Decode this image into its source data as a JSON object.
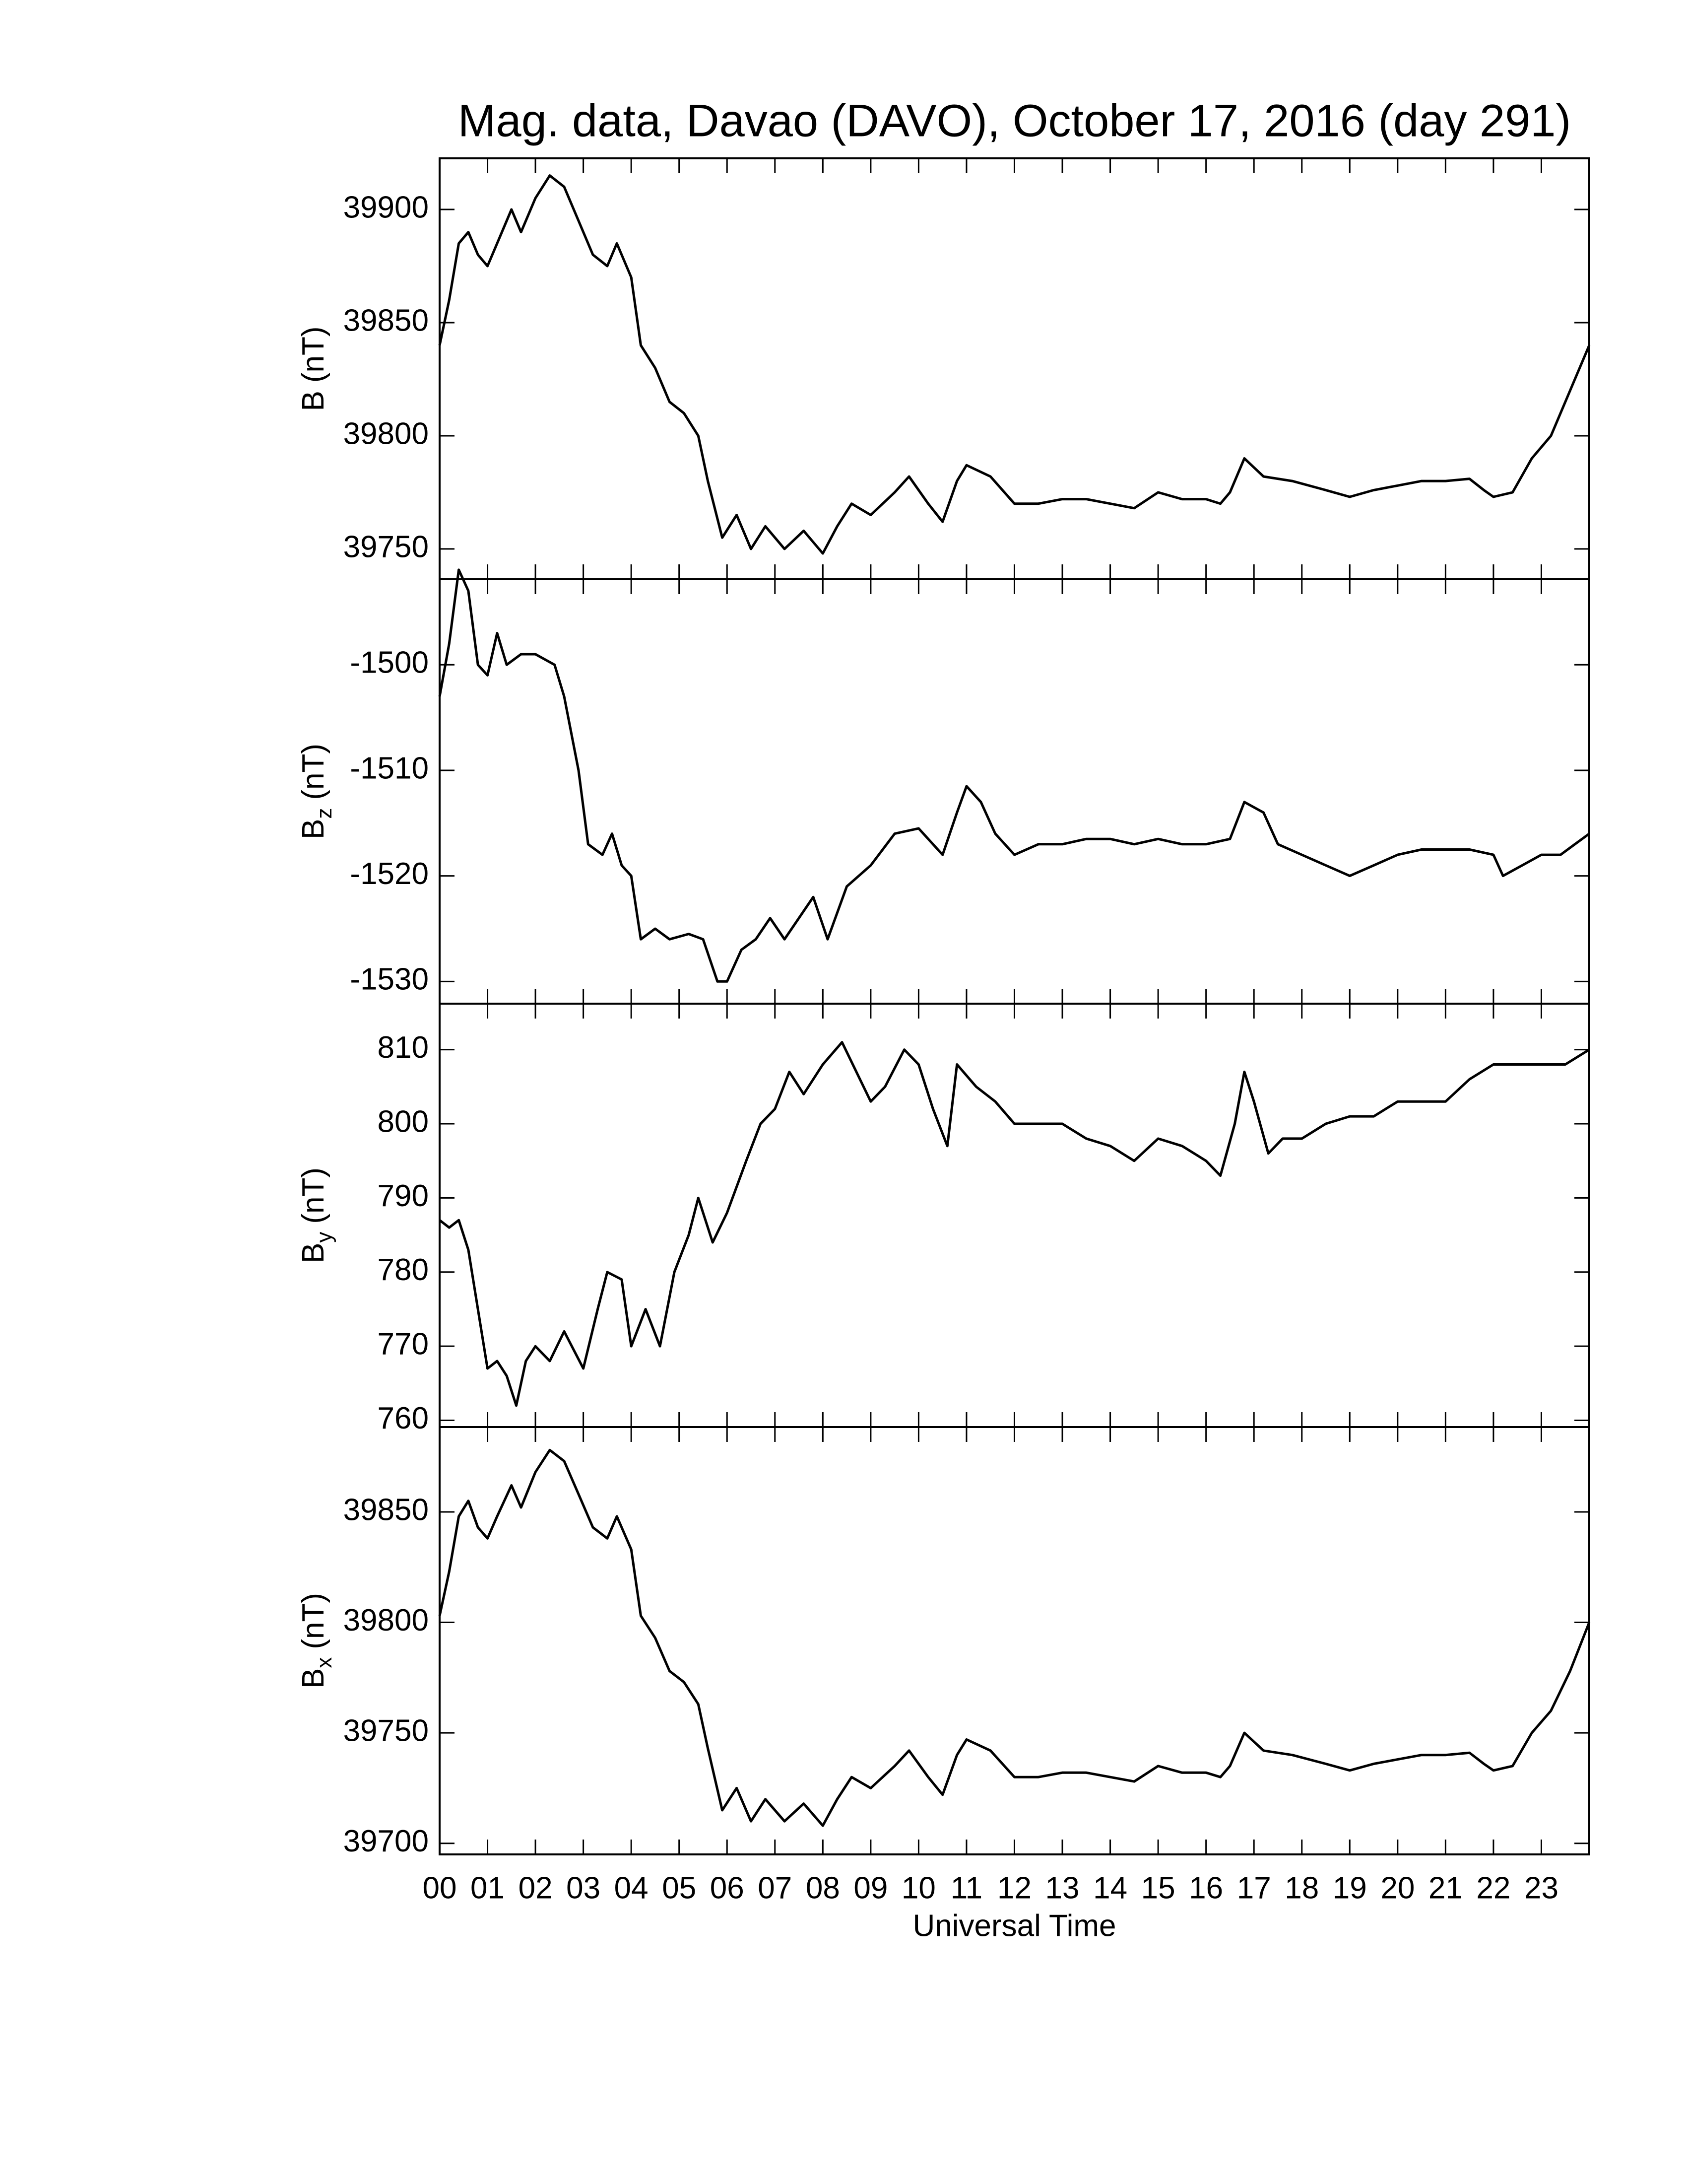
{
  "chart_data": [
    {
      "type": "line",
      "title": "Mag. data, Davao (DAVO), October 17, 2016 (day 291)",
      "ylabel": "B",
      "ylabel_unit": "(nT)",
      "ylim": [
        39736.6,
        39922.6
      ],
      "yticks": [
        39750,
        39800,
        39850,
        39900
      ],
      "xlim": [
        0,
        24
      ],
      "series": [
        {
          "color": "#000000",
          "x": [
            0,
            0.2,
            0.4,
            0.6,
            0.8,
            1.0,
            1.2,
            1.5,
            1.7,
            2.0,
            2.3,
            2.6,
            2.9,
            3.2,
            3.5,
            3.7,
            4.0,
            4.2,
            4.5,
            4.8,
            5.1,
            5.4,
            5.6,
            5.9,
            6.2,
            6.5,
            6.8,
            7.2,
            7.6,
            8.0,
            8.3,
            8.6,
            9.0,
            9.5,
            9.8,
            10.2,
            10.5,
            10.8,
            11.0,
            11.5,
            12.0,
            12.5,
            13.0,
            13.5,
            14.0,
            14.5,
            15.0,
            15.5,
            16.0,
            16.3,
            16.5,
            16.8,
            17.2,
            17.8,
            18.5,
            19.0,
            19.5,
            20.0,
            20.5,
            21.0,
            21.5,
            21.8,
            22.0,
            22.4,
            22.8,
            23.2,
            23.6,
            24.0
          ],
          "values": [
            39840,
            39860,
            39885,
            39890,
            39880,
            39875,
            39885,
            39900,
            39890,
            39905,
            39915,
            39910,
            39895,
            39880,
            39875,
            39885,
            39870,
            39840,
            39830,
            39815,
            39810,
            39800,
            39780,
            39755,
            39765,
            39750,
            39760,
            39750,
            39758,
            39748,
            39760,
            39770,
            39765,
            39775,
            39782,
            39770,
            39762,
            39780,
            39787,
            39782,
            39770,
            39770,
            39772,
            39772,
            39770,
            39768,
            39775,
            39772,
            39772,
            39770,
            39775,
            39790,
            39782,
            39780,
            39776,
            39773,
            39776,
            39778,
            39780,
            39780,
            39781,
            39776,
            39773,
            39775,
            39790,
            39800,
            39820,
            39840
          ]
        }
      ]
    },
    {
      "type": "line",
      "ylabel": "B",
      "ylabel_sub": "z",
      "ylabel_unit": "(nT)",
      "ylim": [
        -1532.1,
        -1491.9
      ],
      "yticks": [
        -1530,
        -1520,
        -1510,
        -1500
      ],
      "xlim": [
        0,
        24
      ],
      "series": [
        {
          "color": "#000000",
          "x": [
            0,
            0.2,
            0.4,
            0.6,
            0.8,
            1.0,
            1.2,
            1.4,
            1.7,
            2.0,
            2.4,
            2.6,
            2.9,
            3.1,
            3.4,
            3.6,
            3.8,
            4.0,
            4.2,
            4.5,
            4.8,
            5.2,
            5.5,
            5.8,
            6.0,
            6.3,
            6.6,
            6.9,
            7.2,
            7.5,
            7.8,
            8.1,
            8.5,
            9.0,
            9.5,
            10.0,
            10.5,
            10.8,
            11.0,
            11.3,
            11.6,
            12.0,
            12.5,
            13.0,
            13.5,
            14.0,
            14.5,
            15.0,
            15.5,
            16.0,
            16.5,
            16.8,
            17.2,
            17.5,
            18.0,
            18.5,
            19.0,
            19.5,
            20.0,
            20.5,
            21.0,
            21.5,
            22.0,
            22.2,
            22.6,
            23.0,
            23.4,
            23.7,
            24.0
          ],
          "values": [
            -1503,
            -1498,
            -1491,
            -1493,
            -1500,
            -1501,
            -1497,
            -1500,
            -1499,
            -1499,
            -1500,
            -1503,
            -1510,
            -1517,
            -1518,
            -1516,
            -1519,
            -1520,
            -1526,
            -1525,
            -1526,
            -1525.5,
            -1526,
            -1530,
            -1530,
            -1527,
            -1526,
            -1524,
            -1526,
            -1524,
            -1522,
            -1526,
            -1521,
            -1519,
            -1516,
            -1515.5,
            -1518,
            -1514,
            -1511.5,
            -1513,
            -1516,
            -1518,
            -1517,
            -1517,
            -1516.5,
            -1516.5,
            -1517,
            -1516.5,
            -1517,
            -1517,
            -1516.5,
            -1513,
            -1514,
            -1517,
            -1518,
            -1519,
            -1520,
            -1519,
            -1518,
            -1517.5,
            -1517.5,
            -1517.5,
            -1518,
            -1520,
            -1519,
            -1518,
            -1518,
            -1517,
            -1516
          ]
        }
      ]
    },
    {
      "type": "line",
      "ylabel": "B",
      "ylabel_sub": "y",
      "ylabel_unit": "(nT)",
      "ylim": [
        759.1,
        816.2
      ],
      "yticks": [
        760,
        770,
        780,
        790,
        800,
        810
      ],
      "xlim": [
        0,
        24
      ],
      "series": [
        {
          "color": "#000000",
          "x": [
            0,
            0.2,
            0.4,
            0.6,
            0.8,
            1.0,
            1.2,
            1.4,
            1.6,
            1.8,
            2.0,
            2.3,
            2.6,
            3.0,
            3.3,
            3.5,
            3.8,
            4.0,
            4.3,
            4.6,
            4.9,
            5.2,
            5.4,
            5.7,
            6.0,
            6.4,
            6.7,
            7.0,
            7.3,
            7.6,
            8.0,
            8.4,
            8.7,
            9.0,
            9.3,
            9.7,
            10.0,
            10.3,
            10.6,
            10.8,
            11.2,
            11.6,
            12.0,
            12.5,
            13.0,
            13.5,
            14.0,
            14.5,
            15.0,
            15.5,
            16.0,
            16.3,
            16.6,
            16.8,
            17.0,
            17.3,
            17.6,
            18.0,
            18.5,
            19.0,
            19.5,
            20.0,
            20.5,
            21.0,
            21.5,
            22.0,
            22.5,
            23.0,
            23.5,
            24.0
          ],
          "values": [
            787,
            786,
            787,
            783,
            775,
            767,
            768,
            766,
            762,
            768,
            770,
            768,
            772,
            767,
            775,
            780,
            779,
            770,
            775,
            770,
            780,
            785,
            790,
            784,
            788,
            795,
            800,
            802,
            807,
            804,
            808,
            811,
            807,
            803,
            805,
            810,
            808,
            802,
            797,
            808,
            805,
            803,
            800,
            800,
            800,
            798,
            797,
            795,
            798,
            797,
            795,
            793,
            800,
            807,
            803,
            796,
            798,
            798,
            800,
            801,
            801,
            803,
            803,
            803,
            806,
            808,
            808,
            808,
            808,
            810
          ]
        }
      ]
    },
    {
      "type": "line",
      "ylabel": "B",
      "ylabel_sub": "x",
      "ylabel_unit": "(nT)",
      "xlabel": "Universal Time",
      "ylim": [
        39695,
        39888.4
      ],
      "yticks": [
        39700,
        39750,
        39800,
        39850
      ],
      "xlim": [
        0,
        24
      ],
      "xticks": [
        {
          "value": 0,
          "label": "00"
        },
        {
          "value": 1,
          "label": "01"
        },
        {
          "value": 2,
          "label": "02"
        },
        {
          "value": 3,
          "label": "03"
        },
        {
          "value": 4,
          "label": "04"
        },
        {
          "value": 5,
          "label": "05"
        },
        {
          "value": 6,
          "label": "06"
        },
        {
          "value": 7,
          "label": "07"
        },
        {
          "value": 8,
          "label": "08"
        },
        {
          "value": 9,
          "label": "09"
        },
        10,
        11,
        12,
        13,
        14,
        15,
        16,
        17,
        18,
        19,
        20,
        21,
        22,
        23
      ],
      "series": [
        {
          "color": "#000000",
          "x": [
            0,
            0.2,
            0.4,
            0.6,
            0.8,
            1.0,
            1.2,
            1.5,
            1.7,
            2.0,
            2.3,
            2.6,
            2.9,
            3.2,
            3.5,
            3.7,
            4.0,
            4.2,
            4.5,
            4.8,
            5.1,
            5.4,
            5.6,
            5.9,
            6.2,
            6.5,
            6.8,
            7.2,
            7.6,
            8.0,
            8.3,
            8.6,
            9.0,
            9.5,
            9.8,
            10.2,
            10.5,
            10.8,
            11.0,
            11.5,
            12.0,
            12.5,
            13.0,
            13.5,
            14.0,
            14.5,
            15.0,
            15.5,
            16.0,
            16.3,
            16.5,
            16.8,
            17.2,
            17.8,
            18.5,
            19.0,
            19.5,
            20.0,
            20.5,
            21.0,
            21.5,
            21.8,
            22.0,
            22.4,
            22.8,
            23.2,
            23.6,
            24.0
          ],
          "values": [
            39803,
            39823,
            39848,
            39855,
            39843,
            39838,
            39848,
            39862,
            39852,
            39868,
            39878,
            39873,
            39858,
            39843,
            39838,
            39848,
            39833,
            39803,
            39793,
            39778,
            39773,
            39763,
            39743,
            39715,
            39725,
            39710,
            39720,
            39710,
            39718,
            39708,
            39720,
            39730,
            39725,
            39735,
            39742,
            39730,
            39722,
            39740,
            39747,
            39742,
            39730,
            39730,
            39732,
            39732,
            39730,
            39728,
            39735,
            39732,
            39732,
            39730,
            39735,
            39750,
            39742,
            39740,
            39736,
            39733,
            39736,
            39738,
            39740,
            39740,
            39741,
            39736,
            39733,
            39735,
            39750,
            39760,
            39778,
            39800
          ]
        }
      ]
    }
  ]
}
